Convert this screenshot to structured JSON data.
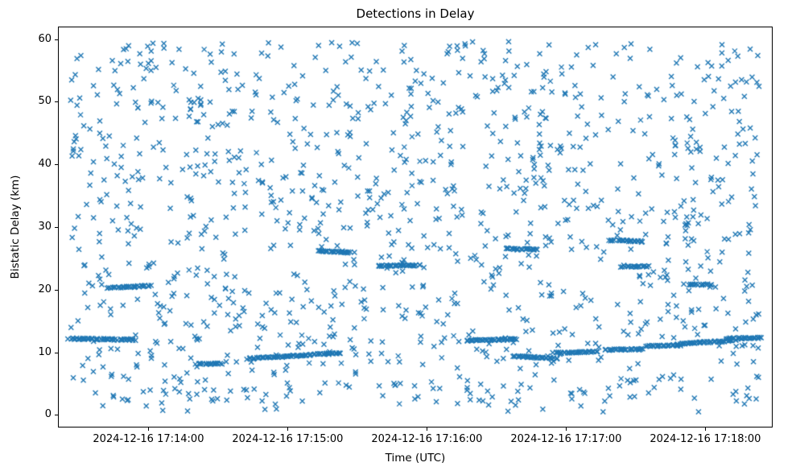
{
  "figure": {
    "title": "Detections in Delay",
    "x_axis_label": "Time (UTC)",
    "y_axis_label": "Bistatic Delay (km)"
  },
  "chart_data": {
    "type": "scatter",
    "title": "Detections in Delay",
    "xlabel": "Time (UTC)",
    "ylabel": "Bistatic Delay (km)",
    "marker": "x",
    "marker_color": "#1f77b4",
    "grid": false,
    "legend": "none",
    "x_axis": {
      "start_time": "2024-12-16 17:13:21",
      "end_time": "2024-12-16 17:18:29",
      "span_seconds": 308,
      "tick_seconds": [
        39,
        99,
        159,
        219,
        279
      ],
      "tick_labels": [
        "2024-12-16 17:14:00",
        "2024-12-16 17:15:00",
        "2024-12-16 17:16:00",
        "2024-12-16 17:17:00",
        "2024-12-16 17:18:00"
      ]
    },
    "y_axis": {
      "min": -2,
      "max": 62,
      "ticks": [
        0,
        10,
        20,
        30,
        40,
        50,
        60
      ],
      "tick_labels": [
        "0",
        "10",
        "20",
        "30",
        "40",
        "50",
        "60"
      ]
    },
    "background_points": {
      "description": "dense uniform clutter of x-marker detections filling the axes",
      "count": 1250,
      "seed": 42,
      "time_range_seconds": [
        5,
        303
      ],
      "delay_range_km": [
        0.5,
        59.6
      ]
    },
    "tracks": [
      {
        "t0": 5,
        "t1": 33,
        "d0": 12.2,
        "d1": 12.0,
        "n": 56
      },
      {
        "t0": 22,
        "t1": 40,
        "d0": 20.3,
        "d1": 20.6,
        "n": 34
      },
      {
        "t0": 60,
        "t1": 70,
        "d0": 8.2,
        "d1": 8.2,
        "n": 20
      },
      {
        "t0": 82,
        "t1": 122,
        "d0": 9.0,
        "d1": 9.9,
        "n": 76
      },
      {
        "t0": 112,
        "t1": 127,
        "d0": 26.2,
        "d1": 25.9,
        "n": 28
      },
      {
        "t0": 138,
        "t1": 156,
        "d0": 23.8,
        "d1": 23.9,
        "n": 34
      },
      {
        "t0": 176,
        "t1": 198,
        "d0": 11.9,
        "d1": 12.1,
        "n": 44
      },
      {
        "t0": 196,
        "t1": 215,
        "d0": 9.4,
        "d1": 9.0,
        "n": 36
      },
      {
        "t0": 193,
        "t1": 207,
        "d0": 26.6,
        "d1": 26.4,
        "n": 26
      },
      {
        "t0": 214,
        "t1": 232,
        "d0": 9.9,
        "d1": 10.1,
        "n": 34
      },
      {
        "t0": 236,
        "t1": 252,
        "d0": 10.4,
        "d1": 10.5,
        "n": 30
      },
      {
        "t0": 238,
        "t1": 252,
        "d0": 27.9,
        "d1": 27.7,
        "n": 26
      },
      {
        "t0": 243,
        "t1": 254,
        "d0": 23.7,
        "d1": 23.7,
        "n": 20
      },
      {
        "t0": 254,
        "t1": 268,
        "d0": 11.0,
        "d1": 11.1,
        "n": 26
      },
      {
        "t0": 266,
        "t1": 292,
        "d0": 11.3,
        "d1": 11.9,
        "n": 50
      },
      {
        "t0": 288,
        "t1": 303,
        "d0": 12.2,
        "d1": 12.3,
        "n": 28
      },
      {
        "t0": 272,
        "t1": 281,
        "d0": 20.8,
        "d1": 20.8,
        "n": 16
      }
    ]
  }
}
